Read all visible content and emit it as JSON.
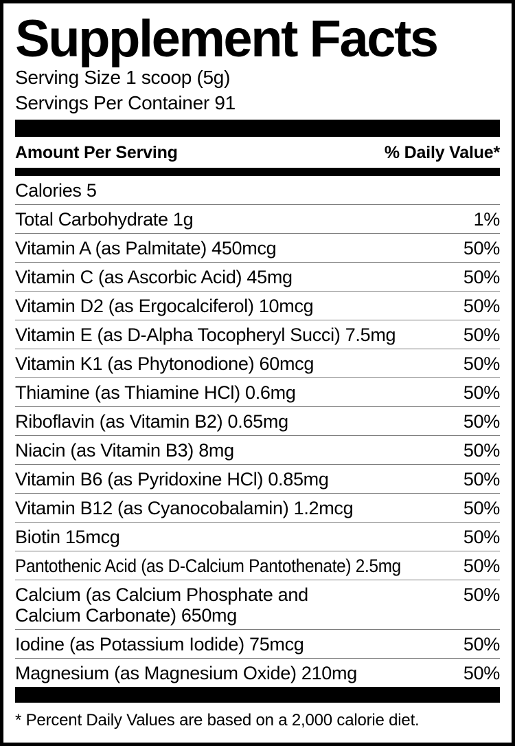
{
  "label": {
    "title": "Supplement Facts",
    "serving_size": "Serving Size 1 scoop (5g)",
    "servings_per_container": "Servings Per Container 91",
    "column_headers": {
      "left": "Amount Per Serving",
      "right": "% Daily Value*"
    },
    "rows": [
      {
        "name": "Calories 5",
        "dv": ""
      },
      {
        "name": "Total Carbohydrate 1g",
        "dv": "1%"
      },
      {
        "name": "Vitamin A (as Palmitate) 450mcg",
        "dv": "50%"
      },
      {
        "name": "Vitamin C (as Ascorbic Acid) 45mg",
        "dv": "50%"
      },
      {
        "name": "Vitamin D2 (as Ergocalciferol) 10mcg",
        "dv": "50%"
      },
      {
        "name": "Vitamin E (as D-Alpha Tocopheryl Succi) 7.5mg",
        "dv": "50%"
      },
      {
        "name": "Vitamin K1 (as Phytonodione) 60mcg",
        "dv": "50%"
      },
      {
        "name": "Thiamine (as Thiamine HCl) 0.6mg",
        "dv": "50%"
      },
      {
        "name": "Riboflavin (as Vitamin B2) 0.65mg",
        "dv": "50%"
      },
      {
        "name": "Niacin (as Vitamin B3) 8mg",
        "dv": "50%"
      },
      {
        "name": "Vitamin B6 (as Pyridoxine HCl) 0.85mg",
        "dv": "50%"
      },
      {
        "name": "Vitamin B12 (as Cyanocobalamin) 1.2mcg",
        "dv": "50%"
      },
      {
        "name": "Biotin 15mcg",
        "dv": "50%"
      },
      {
        "name": "Pantothenic Acid (as D-Calcium Pantothenate) 2.5mg",
        "dv": "50%"
      },
      {
        "name": "Calcium (as Calcium Phosphate and\nCalcium Carbonate) 650mg",
        "dv": "50%"
      },
      {
        "name": "Iodine (as Potassium Iodide) 75mcg",
        "dv": "50%"
      },
      {
        "name": "Magnesium (as Magnesium Oxide) 210mg",
        "dv": "50%"
      }
    ],
    "footnote": "* Percent Daily Values are based on a 2,000 calorie diet.",
    "colors": {
      "text": "#000000",
      "background": "#ffffff",
      "bar": "#000000",
      "rule": "#7d7d7d"
    }
  }
}
